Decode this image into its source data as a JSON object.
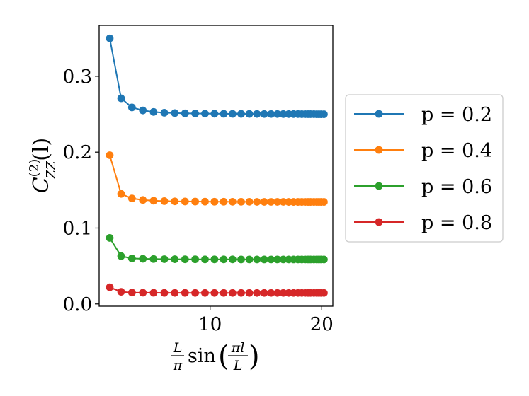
{
  "chart_data": {
    "type": "line",
    "title": "",
    "xlabel": {
      "frac_num": "L",
      "frac_den": "π",
      "func": "sin",
      "arg_num": "πl",
      "arg_den": "L"
    },
    "ylabel": {
      "base": "C",
      "sup": "(2)",
      "sub": "ZZ",
      "arg": "(l)"
    },
    "xlim": [
      0.05,
      21.0
    ],
    "ylim": [
      -0.003,
      0.367
    ],
    "xticks": [
      10,
      20
    ],
    "xtick_labels": [
      "10",
      "20"
    ],
    "yticks": [
      0.0,
      0.1,
      0.2,
      0.3
    ],
    "ytick_labels": [
      "0.0",
      "0.1",
      "0.2",
      "0.3"
    ],
    "grid": false,
    "legend_placement": "right-outside",
    "x": [
      1.0,
      2.02,
      2.99,
      3.97,
      4.93,
      5.89,
      6.83,
      7.75,
      8.66,
      9.54,
      10.39,
      11.22,
      12.01,
      12.78,
      13.51,
      14.2,
      14.85,
      15.46,
      16.03,
      16.56,
      17.04,
      17.48,
      17.87,
      18.22,
      18.52,
      18.78,
      19.0,
      19.3,
      19.55,
      19.75,
      19.95,
      20.2
    ],
    "series": [
      {
        "name": "p = 0.2",
        "color": "#1f77b4",
        "values": [
          0.35,
          0.271,
          0.259,
          0.255,
          0.253,
          0.252,
          0.2515,
          0.2512,
          0.251,
          0.2508,
          0.2507,
          0.2506,
          0.2505,
          0.2505,
          0.2504,
          0.2504,
          0.2503,
          0.2503,
          0.2503,
          0.2502,
          0.2502,
          0.2502,
          0.2502,
          0.2501,
          0.2501,
          0.2501,
          0.2501,
          0.2501,
          0.25,
          0.25,
          0.25,
          0.25
        ]
      },
      {
        "name": "p = 0.4",
        "color": "#ff7f0e",
        "values": [
          0.196,
          0.145,
          0.139,
          0.137,
          0.136,
          0.1355,
          0.1352,
          0.135,
          0.1349,
          0.1348,
          0.1347,
          0.1347,
          0.1346,
          0.1346,
          0.1346,
          0.1345,
          0.1345,
          0.1345,
          0.1345,
          0.1345,
          0.1344,
          0.1344,
          0.1344,
          0.1344,
          0.1344,
          0.1344,
          0.1344,
          0.1344,
          0.1344,
          0.1344,
          0.1344,
          0.1344
        ]
      },
      {
        "name": "p = 0.6",
        "color": "#2ca02c",
        "values": [
          0.087,
          0.063,
          0.06,
          0.0595,
          0.0592,
          0.059,
          0.0589,
          0.0588,
          0.0588,
          0.0587,
          0.0587,
          0.0587,
          0.0587,
          0.0586,
          0.0586,
          0.0586,
          0.0586,
          0.0586,
          0.0586,
          0.0586,
          0.0586,
          0.0586,
          0.0586,
          0.0586,
          0.0586,
          0.0586,
          0.0586,
          0.0586,
          0.0586,
          0.0586,
          0.0586,
          0.0586
        ]
      },
      {
        "name": "p = 0.8",
        "color": "#d62728",
        "values": [
          0.022,
          0.016,
          0.015,
          0.0148,
          0.0147,
          0.0146,
          0.0146,
          0.0146,
          0.0145,
          0.0145,
          0.0145,
          0.0145,
          0.0145,
          0.0145,
          0.0145,
          0.0145,
          0.0145,
          0.0145,
          0.0145,
          0.0145,
          0.0145,
          0.0145,
          0.0145,
          0.0145,
          0.0145,
          0.0145,
          0.0145,
          0.0145,
          0.0145,
          0.0145,
          0.0145,
          0.0145
        ]
      }
    ]
  }
}
